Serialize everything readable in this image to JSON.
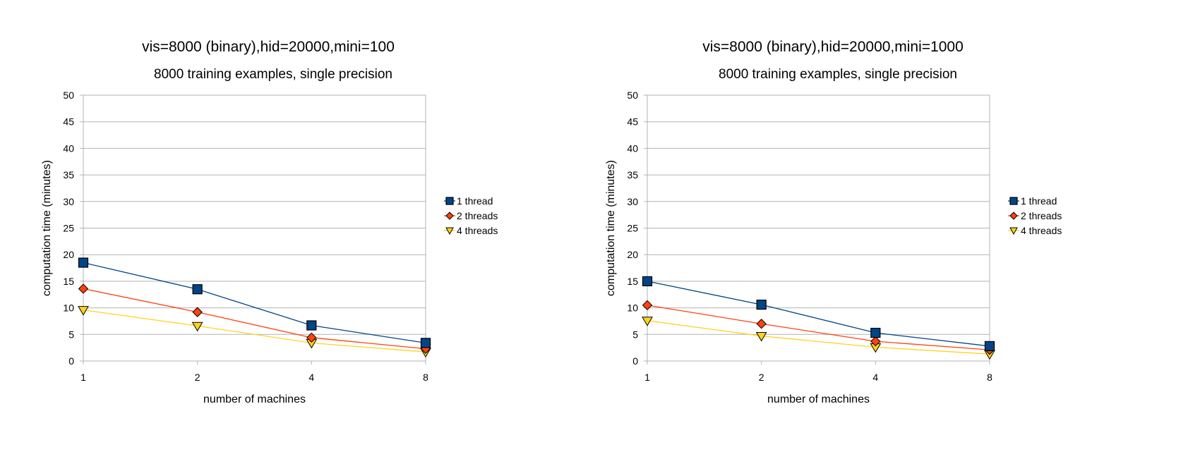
{
  "chart_data": [
    {
      "type": "line",
      "title": "vis=8000 (binary),hid=20000,mini=100",
      "subtitle": "8000 training examples, single precision",
      "xlabel": "number of machines",
      "ylabel": "computation time (minutes)",
      "categories": [
        "1",
        "2",
        "4",
        "8"
      ],
      "ylim": [
        0,
        50
      ],
      "yticks": [
        "0",
        "5",
        "10",
        "15",
        "20",
        "25",
        "30",
        "35",
        "40",
        "45",
        "50"
      ],
      "grid": true,
      "legend_position": "right",
      "series": [
        {
          "name": "1 thread",
          "values": [
            18.5,
            13.5,
            6.7,
            3.4
          ],
          "color": "#004586",
          "marker": "square"
        },
        {
          "name": "2 threads",
          "values": [
            13.6,
            9.2,
            4.4,
            2.3
          ],
          "color": "#ff420e",
          "marker": "diamond"
        },
        {
          "name": "4 threads",
          "values": [
            9.6,
            6.6,
            3.4,
            1.7
          ],
          "color": "#ffd320",
          "marker": "triangle-down"
        }
      ]
    },
    {
      "type": "line",
      "title": "vis=8000 (binary),hid=20000,mini=1000",
      "subtitle": "8000 training examples, single precision",
      "xlabel": "number of machines",
      "ylabel": "computation time (minutes)",
      "categories": [
        "1",
        "2",
        "4",
        "8"
      ],
      "ylim": [
        0,
        50
      ],
      "yticks": [
        "0",
        "5",
        "10",
        "15",
        "20",
        "25",
        "30",
        "35",
        "40",
        "45",
        "50"
      ],
      "grid": true,
      "legend_position": "right",
      "series": [
        {
          "name": "1 thread",
          "values": [
            15.0,
            10.6,
            5.3,
            2.8
          ],
          "color": "#004586",
          "marker": "square"
        },
        {
          "name": "2 threads",
          "values": [
            10.5,
            7.0,
            3.7,
            2.1
          ],
          "color": "#ff420e",
          "marker": "diamond"
        },
        {
          "name": "4 threads",
          "values": [
            7.6,
            4.7,
            2.6,
            1.3
          ],
          "color": "#ffd320",
          "marker": "triangle-down"
        }
      ]
    }
  ]
}
